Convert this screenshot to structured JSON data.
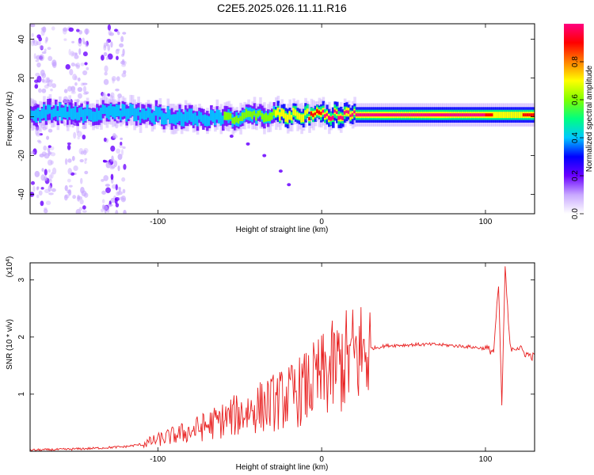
{
  "title": "C2E5.2025.026.11.11.R16",
  "chart_data": [
    {
      "type": "heatmap",
      "xlabel": "Height of straight line (km)",
      "ylabel": "Frequency (Hz)",
      "xlim": [
        -178,
        130
      ],
      "ylim": [
        -50,
        48
      ],
      "xticks": [
        -100,
        0,
        100
      ],
      "yticks": [
        -40,
        -20,
        0,
        20,
        40
      ],
      "colorbar": {
        "label": "Normalized spectral amplitude",
        "range": [
          0.0,
          1.0
        ],
        "ticks": [
          0.0,
          0.2,
          0.4,
          0.6,
          0.8
        ],
        "colormap": [
          "#ffffff",
          "#c8a8ff",
          "#6a00ff",
          "#0000ff",
          "#00c8ff",
          "#00ff80",
          "#80ff00",
          "#ffff00",
          "#ff8000",
          "#ff0000",
          "#ff0080"
        ]
      },
      "ridge": {
        "x": [
          -178,
          -150,
          -120,
          -100,
          -80,
          -60,
          -40,
          -20,
          0,
          20,
          40,
          60,
          80,
          100,
          110,
          130
        ],
        "frequency": [
          2,
          2,
          2,
          1,
          0,
          -1,
          1,
          1,
          1,
          1,
          1,
          1,
          1,
          1,
          1,
          1
        ],
        "amplitude": [
          0.45,
          0.4,
          0.5,
          0.5,
          0.5,
          0.55,
          0.55,
          0.75,
          0.8,
          0.85,
          0.9,
          0.9,
          0.85,
          0.8,
          0.75,
          0.8
        ]
      },
      "noise_columns_x": [
        -170,
        -150,
        -127
      ],
      "chirp": {
        "x": [
          -55,
          -45,
          -35,
          -25,
          -20
        ],
        "frequency": [
          -10,
          -14,
          -20,
          -28,
          -35
        ]
      }
    },
    {
      "type": "line",
      "xlabel": "Height of straight line (km)",
      "ylabel": "SNR (10 * v/v)",
      "y_multiplier": "(x10",
      "y_exponent": "4",
      "y_multiplier_close": ")",
      "xlim": [
        -178,
        130
      ],
      "ylim": [
        0,
        3.3
      ],
      "xticks": [
        -100,
        0,
        100
      ],
      "yticks": [
        1,
        2,
        3
      ],
      "color": "#e82020",
      "x": [
        -178,
        -160,
        -140,
        -120,
        -110,
        -100,
        -90,
        -80,
        -70,
        -60,
        -50,
        -40,
        -30,
        -20,
        -10,
        0,
        10,
        20,
        30,
        40,
        50,
        60,
        70,
        80,
        90,
        100,
        105,
        108,
        110,
        112,
        115,
        120,
        125,
        130
      ],
      "values": [
        0.02,
        0.03,
        0.05,
        0.08,
        0.12,
        0.2,
        0.28,
        0.35,
        0.45,
        0.55,
        0.65,
        0.75,
        0.85,
        0.95,
        1.1,
        1.3,
        1.5,
        1.65,
        1.8,
        1.85,
        1.86,
        1.87,
        1.87,
        1.85,
        1.83,
        1.8,
        1.75,
        2.9,
        0.8,
        3.2,
        1.82,
        1.82,
        1.7,
        1.65
      ]
    }
  ]
}
